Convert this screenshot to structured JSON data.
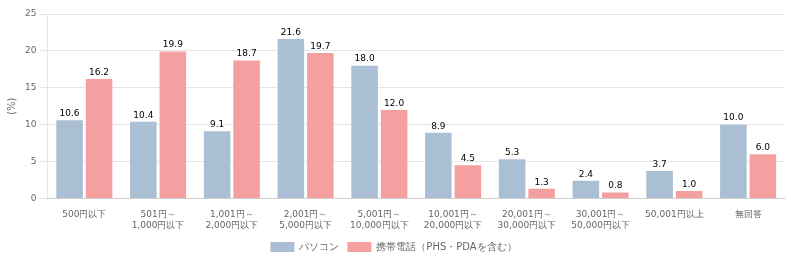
{
  "chart_data": {
    "type": "bar",
    "categories": [
      "500円以下",
      "501円～\n1,000円以下",
      "1,001円～\n2,000円以下",
      "2,001円～\n5,000円以下",
      "5,001円～\n10,000円以下",
      "10,001円～\n20,000円以下",
      "20,001円～\n30,000円以下",
      "30,001円～\n50,000円以下",
      "50,001円以上",
      "無回答"
    ],
    "series": [
      {
        "name": "パソコン",
        "color": "#AABFD4",
        "values": [
          10.6,
          10.4,
          9.1,
          21.6,
          18.0,
          8.9,
          5.3,
          2.4,
          3.7,
          10.0
        ],
        "value_labels": [
          "10.6",
          "10.4",
          "9.1",
          "21.6",
          "18.0",
          "8.9",
          "5.3",
          "2.4",
          "3.7",
          "10.0"
        ]
      },
      {
        "name": "携帯電話（PHS・PDAを含む）",
        "color": "#F4A0A0",
        "values": [
          16.2,
          19.9,
          18.7,
          19.7,
          12.0,
          4.5,
          1.3,
          0.8,
          1.0,
          6.0
        ],
        "value_labels": [
          "16.2",
          "19.9",
          "18.7",
          "19.7",
          "12.0",
          "4.5",
          "1.3",
          "0.8",
          "1.0",
          "6.0"
        ]
      }
    ],
    "ylabel": "(%)",
    "ylim": [
      0,
      25
    ],
    "yticks": [
      0,
      5,
      10,
      15,
      20,
      25
    ],
    "grid": true,
    "legend": "bottom",
    "data_labels": true
  }
}
